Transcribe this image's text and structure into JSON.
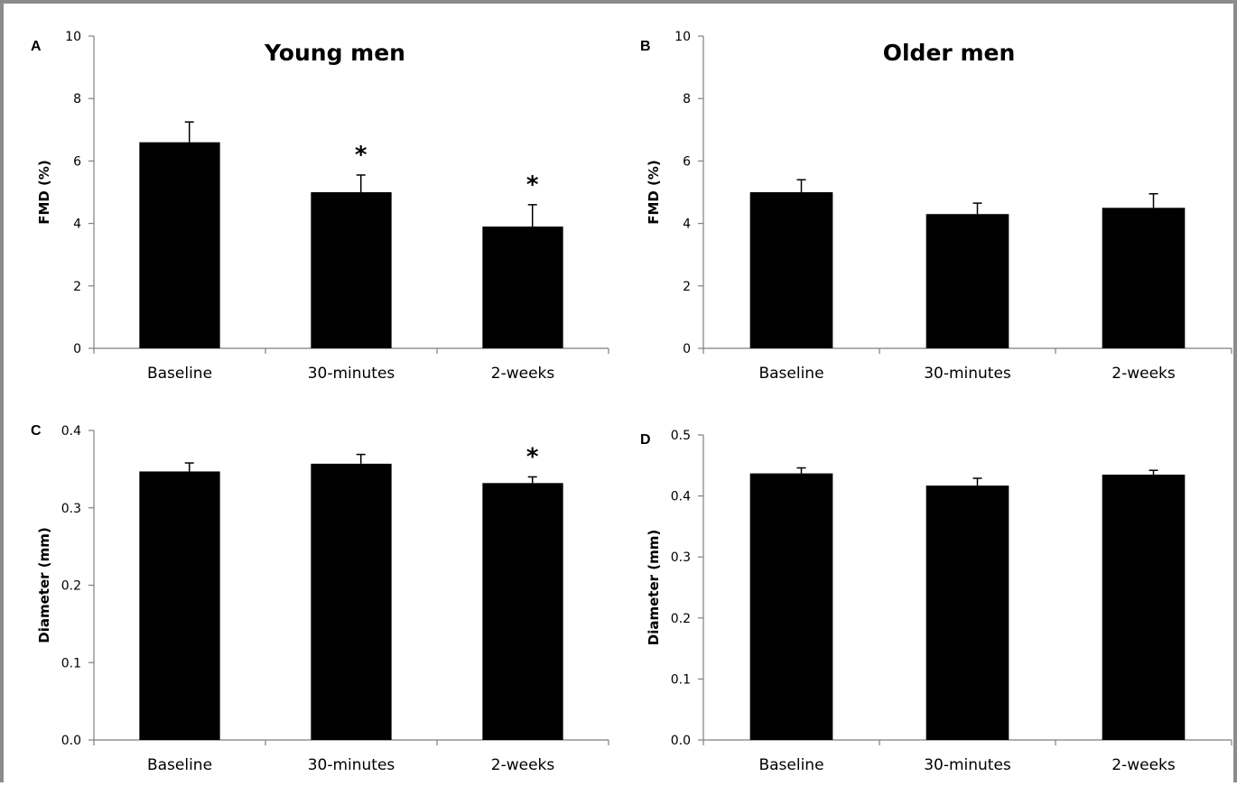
{
  "chart_data": [
    {
      "panel": "A",
      "type": "bar",
      "title": "Young men",
      "xlabel": "",
      "ylabel": "FMD (%)",
      "categories": [
        "Baseline",
        "30-minutes",
        "2-weeks"
      ],
      "values": [
        6.6,
        5.0,
        3.9
      ],
      "errors": [
        0.65,
        0.55,
        0.7
      ],
      "significance": [
        "",
        "*",
        "*"
      ],
      "ylim": [
        0,
        10
      ],
      "yticks": [
        "0",
        "2",
        "4",
        "6",
        "8",
        "10"
      ],
      "bar_color": "#000000"
    },
    {
      "panel": "B",
      "type": "bar",
      "title": "Older men",
      "xlabel": "",
      "ylabel": "FMD (%)",
      "categories": [
        "Baseline",
        "30-minutes",
        "2-weeks"
      ],
      "values": [
        5.0,
        4.3,
        4.5
      ],
      "errors": [
        0.4,
        0.35,
        0.45
      ],
      "significance": [
        "",
        "",
        ""
      ],
      "ylim": [
        0,
        10
      ],
      "yticks": [
        "0",
        "2",
        "4",
        "6",
        "8",
        "10"
      ],
      "bar_color": "#000000"
    },
    {
      "panel": "C",
      "type": "bar",
      "title": "",
      "xlabel": "",
      "ylabel": "Diameter (mm)",
      "categories": [
        "Baseline",
        "30-minutes",
        "2-weeks"
      ],
      "values": [
        0.347,
        0.357,
        0.332
      ],
      "errors": [
        0.011,
        0.012,
        0.008
      ],
      "significance": [
        "",
        "",
        "*"
      ],
      "ylim": [
        0,
        0.4
      ],
      "yticks": [
        "0.0",
        "0.1",
        "0.2",
        "0.3",
        "0.4"
      ],
      "bar_color": "#000000"
    },
    {
      "panel": "D",
      "type": "bar",
      "title": "",
      "xlabel": "",
      "ylabel": "Diameter (mm)",
      "categories": [
        "Baseline",
        "30-minutes",
        "2-weeks"
      ],
      "values": [
        0.437,
        0.417,
        0.435
      ],
      "errors": [
        0.009,
        0.012,
        0.007
      ],
      "significance": [
        "",
        "",
        ""
      ],
      "ylim": [
        0,
        0.5
      ],
      "yticks": [
        "0.0",
        "0.1",
        "0.2",
        "0.3",
        "0.4",
        "0.5"
      ],
      "bar_color": "#000000"
    }
  ]
}
